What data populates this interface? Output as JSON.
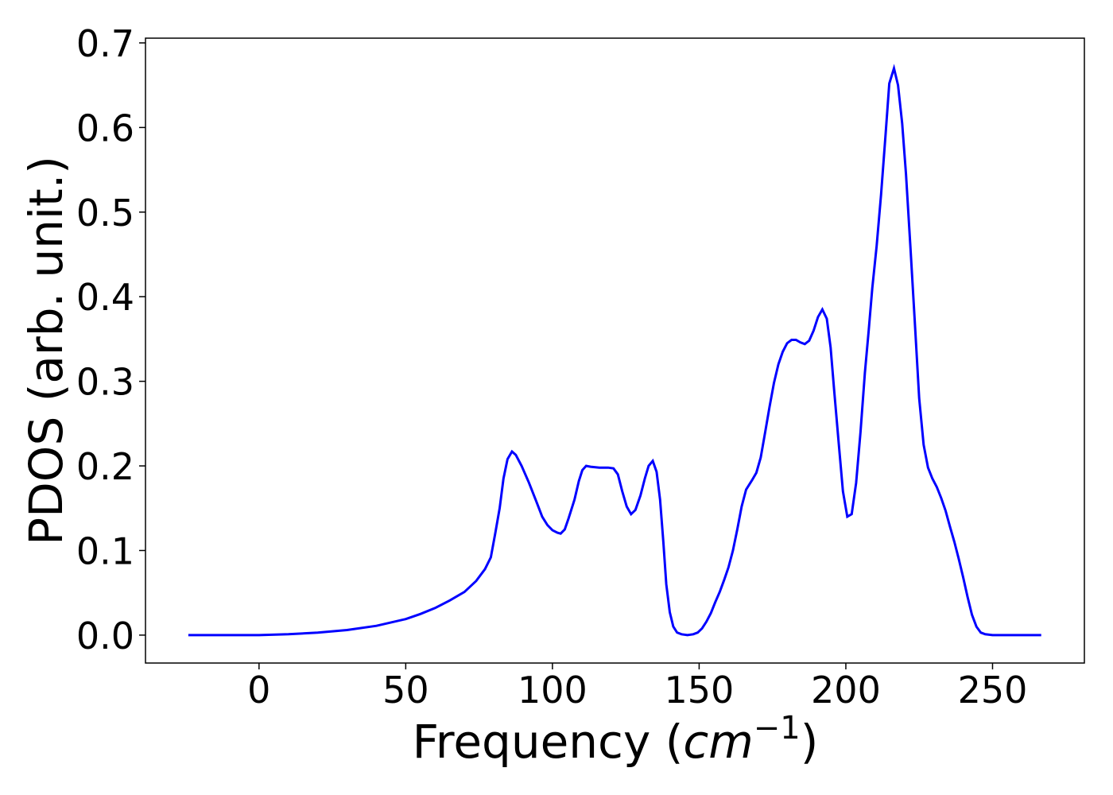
{
  "chart_data": {
    "type": "line",
    "xlabel": {
      "prefix": "Frequency (",
      "math": "cm",
      "sup": "−1",
      "suffix": ")"
    },
    "ylabel": "PDOS (arb. unit.)",
    "x": [
      -24.1,
      0,
      10,
      20,
      30,
      40,
      50,
      55,
      60,
      65,
      70,
      74,
      77,
      79,
      80.5,
      82,
      83.3,
      84.7,
      86.2,
      87.5,
      89.5,
      92,
      94.5,
      96.5,
      98.3,
      100,
      101.7,
      102.8,
      104.2,
      105.5,
      107.5,
      109,
      110.2,
      111.5,
      113,
      116,
      119,
      120.8,
      122.3,
      123.8,
      125.3,
      126.8,
      128.3,
      130,
      131.5,
      132.8,
      134.2,
      135.5,
      136.7,
      137.8,
      138.8,
      140,
      141.2,
      142.5,
      144,
      146,
      148,
      149.5,
      151,
      152.5,
      154,
      155.5,
      157,
      158.5,
      160,
      161.5,
      163,
      164.5,
      166,
      168,
      169.5,
      171,
      172.5,
      174,
      175.5,
      177,
      178.5,
      180,
      181.5,
      183,
      184.5,
      186,
      187.5,
      189,
      190.5,
      192,
      193.5,
      194.8,
      196,
      197.5,
      199,
      200.5,
      202,
      203.5,
      205,
      206.5,
      207.8,
      209,
      210.5,
      212,
      213.5,
      214.8,
      216.4,
      217.8,
      219.2,
      220.5,
      222,
      223.5,
      225,
      226.5,
      228,
      229.5,
      231,
      232.5,
      234,
      235.5,
      237,
      238.5,
      240,
      241.5,
      243,
      244.5,
      246,
      247.5,
      250,
      266.6
    ],
    "series": [
      {
        "color": "#0000ff",
        "values": [
          0,
          0,
          0.001,
          0.003,
          0.006,
          0.011,
          0.019,
          0.025,
          0.032,
          0.041,
          0.051,
          0.064,
          0.078,
          0.092,
          0.12,
          0.15,
          0.185,
          0.208,
          0.217,
          0.213,
          0.2,
          0.18,
          0.158,
          0.14,
          0.13,
          0.124,
          0.121,
          0.12,
          0.125,
          0.138,
          0.16,
          0.182,
          0.195,
          0.2,
          0.199,
          0.198,
          0.198,
          0.197,
          0.19,
          0.17,
          0.152,
          0.143,
          0.148,
          0.165,
          0.185,
          0.2,
          0.206,
          0.193,
          0.16,
          0.11,
          0.06,
          0.027,
          0.01,
          0.003,
          0.001,
          0,
          0.001,
          0.003,
          0.008,
          0.016,
          0.026,
          0.039,
          0.051,
          0.065,
          0.08,
          0.1,
          0.125,
          0.152,
          0.172,
          0.183,
          0.192,
          0.21,
          0.24,
          0.27,
          0.298,
          0.32,
          0.335,
          0.345,
          0.349,
          0.349,
          0.346,
          0.344,
          0.348,
          0.36,
          0.376,
          0.385,
          0.374,
          0.34,
          0.29,
          0.23,
          0.17,
          0.14,
          0.143,
          0.18,
          0.24,
          0.31,
          0.36,
          0.41,
          0.46,
          0.52,
          0.59,
          0.652,
          0.67,
          0.65,
          0.605,
          0.545,
          0.46,
          0.37,
          0.28,
          0.225,
          0.198,
          0.185,
          0.175,
          0.162,
          0.147,
          0.128,
          0.11,
          0.09,
          0.068,
          0.045,
          0.024,
          0.01,
          0.003,
          0.001,
          0,
          0
        ]
      }
    ],
    "xlim": [
      -38.7,
      281.3
    ],
    "ylim": [
      -0.033,
      0.7056
    ],
    "xticks": [
      0,
      50,
      100,
      150,
      200,
      250
    ],
    "yticks": [
      {
        "value": 0,
        "label": "0.0"
      },
      0.1,
      0.2,
      0.3,
      0.4,
      0.5,
      0.6,
      0.7
    ]
  }
}
